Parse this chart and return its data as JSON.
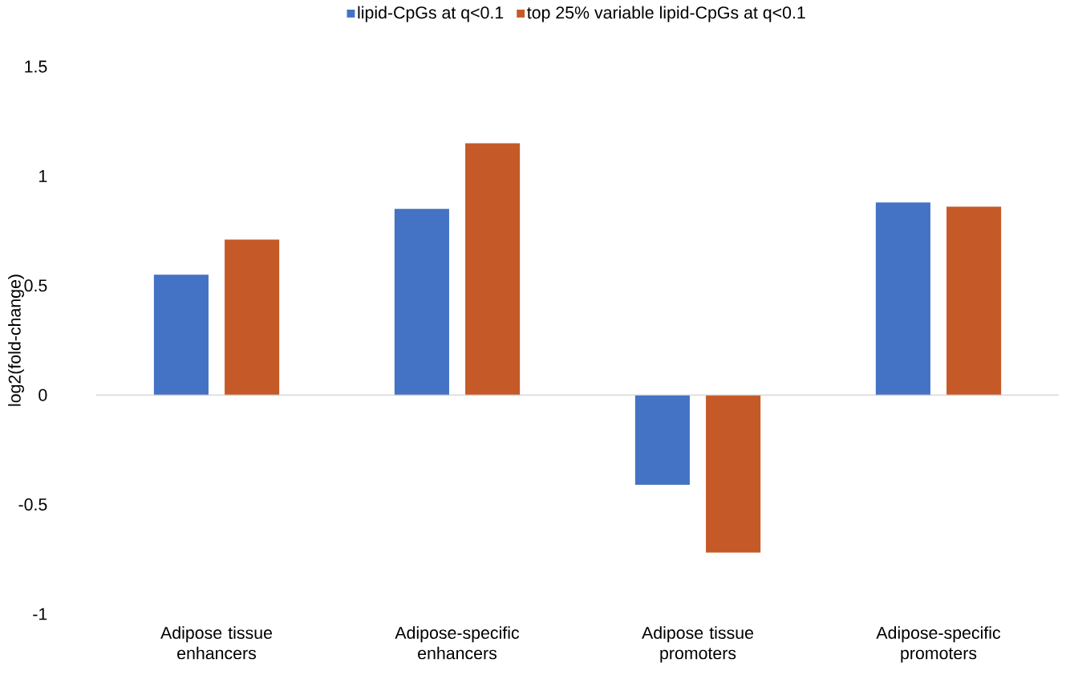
{
  "chart_data": {
    "type": "bar",
    "ylabel": "log2(fold-change)",
    "categories": [
      "Adipose tissue enhancers",
      "Adipose-specific enhancers",
      "Adipose tissue promoters",
      "Adipose-specific promoters"
    ],
    "series": [
      {
        "name": "lipid-CpGs at q<0.1",
        "color": "#4472c4",
        "values": [
          0.55,
          0.85,
          -0.41,
          0.88
        ]
      },
      {
        "name": "top 25% variable lipid-CpGs at q<0.1",
        "color": "#c55a28",
        "values": [
          0.71,
          1.15,
          -0.72,
          0.86
        ]
      }
    ],
    "ylim": [
      -1,
      1.5
    ],
    "yticks": [
      -1,
      -0.5,
      0,
      0.5,
      1,
      1.5
    ],
    "legend": "top"
  }
}
